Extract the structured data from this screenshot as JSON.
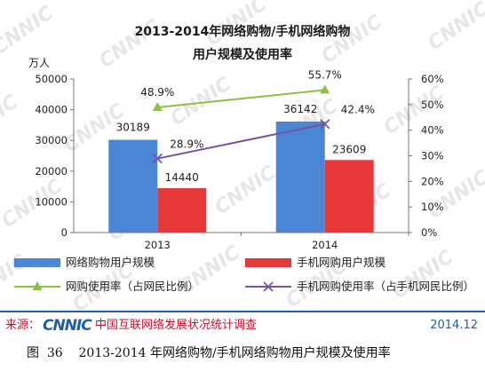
{
  "chart_data": {
    "type": "bar",
    "title": "2013-2014年网络购物/手机网络购物",
    "subtitle": "用户规模及使用率",
    "ylabel": "万人",
    "categories": [
      "2013",
      "2014"
    ],
    "ylim": [
      0,
      50000
    ],
    "y2lim": [
      0,
      60
    ],
    "yticks": [
      "0",
      "10000",
      "20000",
      "30000",
      "40000",
      "50000"
    ],
    "y2ticks": [
      "0%",
      "10%",
      "20%",
      "30%",
      "40%",
      "50%",
      "60%"
    ],
    "series": [
      {
        "name": "网络购物用户规模",
        "kind": "bar",
        "axis": "left",
        "color": "#4a86d4",
        "values": [
          30189,
          36142
        ],
        "labels": [
          "30189",
          "36142"
        ]
      },
      {
        "name": "手机网购用户规模",
        "kind": "bar",
        "axis": "left",
        "color": "#e8393a",
        "values": [
          14440,
          23609
        ],
        "labels": [
          "14440",
          "23609"
        ]
      },
      {
        "name": "网购使用率（占网民比例）",
        "kind": "line",
        "axis": "right",
        "color": "#8dc043",
        "marker": "triangle",
        "values": [
          48.9,
          55.7
        ],
        "labels": [
          "48.9%",
          "55.7%"
        ]
      },
      {
        "name": "手机网购使用率（占手机网民比例）",
        "kind": "line",
        "axis": "right",
        "color": "#7553a6",
        "marker": "x",
        "values": [
          28.9,
          42.4
        ],
        "labels": [
          "28.9%",
          "42.4%"
        ]
      }
    ],
    "grid": false,
    "legend": "bottom"
  },
  "footer": {
    "source_label": "来源：",
    "logo_text": "CNNIC",
    "org_name": "中国互联网络发展状况统计调查",
    "date": "2014.12",
    "source_color": "#c8102e",
    "line_color": "#1f5ea8"
  },
  "watermark": "CNNIC",
  "caption": "图  36    2013-2014 年网络购物/手机网络购物用户规模及使用率"
}
